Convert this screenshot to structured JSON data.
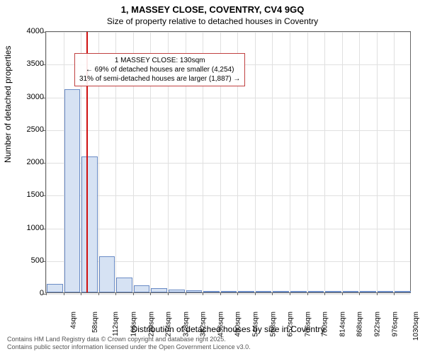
{
  "title": "1, MASSEY CLOSE, COVENTRY, CV4 9GQ",
  "subtitle": "Size of property relative to detached houses in Coventry",
  "ylabel": "Number of detached properties",
  "xlabel": "Distribution of detached houses by size in Coventry",
  "chart": {
    "type": "histogram",
    "background_color": "#ffffff",
    "grid_color": "#e0e0e0",
    "axis_color": "#666666",
    "bar_fill": "#d6e2f3",
    "bar_stroke": "#6a8bc5",
    "marker_color": "#d01010",
    "annot_border": "#c04040",
    "ylim": [
      0,
      4000
    ],
    "yticks": [
      0,
      500,
      1000,
      1500,
      2000,
      2500,
      3000,
      3500,
      4000
    ],
    "x_start": 4,
    "x_step": 54,
    "x_count": 21,
    "x_unit": "sqm",
    "values": [
      130,
      3100,
      2080,
      550,
      230,
      110,
      60,
      40,
      30,
      25,
      20,
      15,
      10,
      10,
      8,
      6,
      5,
      4,
      3,
      2,
      2
    ],
    "marker_x": 130,
    "annot_line1": "1 MASSEY CLOSE: 130sqm",
    "annot_line2": "← 69% of detached houses are smaller (4,254)",
    "annot_line3": "31% of semi-detached houses are larger (1,887) →",
    "title_fontsize": 13,
    "label_fontsize": 12,
    "tick_fontsize": 11
  },
  "footer_line1": "Contains HM Land Registry data © Crown copyright and database right 2025.",
  "footer_line2": "Contains public sector information licensed under the Open Government Licence v3.0."
}
